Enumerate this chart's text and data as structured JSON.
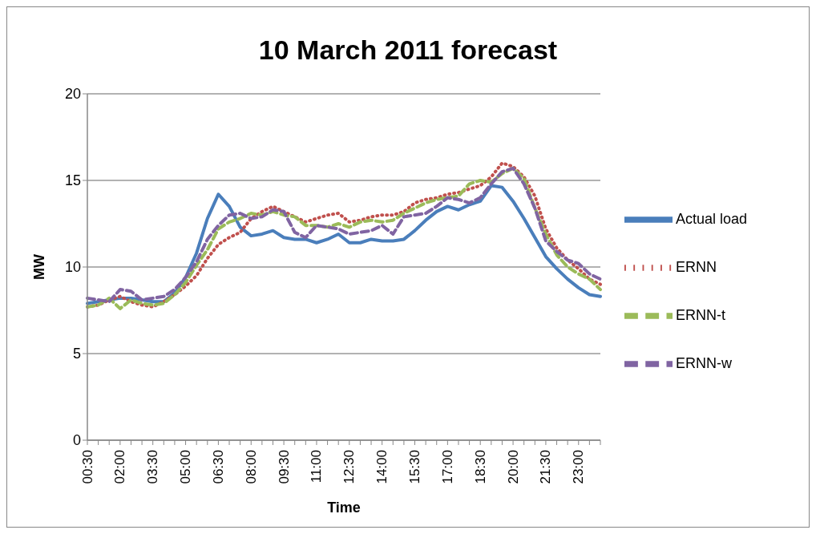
{
  "chart_data": {
    "type": "line",
    "title": "10 March 2011 forecast",
    "xlabel": "Time",
    "ylabel": "MW",
    "categories": [
      "00:30",
      null,
      null,
      "02:00",
      null,
      null,
      "03:30",
      null,
      null,
      "05:00",
      null,
      null,
      "06:30",
      null,
      null,
      "08:00",
      null,
      null,
      "09:30",
      null,
      null,
      "11:00",
      null,
      null,
      "12:30",
      null,
      null,
      "14:00",
      null,
      null,
      "15:30",
      null,
      null,
      "17:00",
      null,
      null,
      "18:30",
      null,
      null,
      "20:00",
      null,
      null,
      "21:30",
      null,
      null,
      "23:00",
      null,
      null
    ],
    "series": [
      {
        "name": "Actual load",
        "color": "#4a7ebb",
        "line_style": "solid",
        "values": [
          7.9,
          8.0,
          8.1,
          8.2,
          8.2,
          8.1,
          8.0,
          8.0,
          8.5,
          9.4,
          10.8,
          12.8,
          14.2,
          13.5,
          12.3,
          11.8,
          11.9,
          12.1,
          11.7,
          11.6,
          11.6,
          11.4,
          11.6,
          11.9,
          11.4,
          11.4,
          11.6,
          11.5,
          11.5,
          11.6,
          12.1,
          12.7,
          13.2,
          13.5,
          13.3,
          13.6,
          13.8,
          14.7,
          14.6,
          13.8,
          12.8,
          11.7,
          10.6,
          9.9,
          9.3,
          8.8,
          8.4,
          8.3
        ]
      },
      {
        "name": "ERNN",
        "color": "#c0504d",
        "line_style": "dotted",
        "values": [
          7.7,
          7.8,
          8.1,
          8.3,
          8.0,
          7.8,
          7.7,
          8.0,
          8.4,
          8.9,
          9.5,
          10.5,
          11.3,
          11.7,
          12.0,
          12.8,
          13.2,
          13.5,
          13.2,
          12.9,
          12.6,
          12.8,
          13.0,
          13.1,
          12.6,
          12.7,
          12.9,
          13.0,
          13.0,
          13.2,
          13.7,
          13.9,
          14.0,
          14.2,
          14.3,
          14.5,
          14.7,
          15.2,
          16.0,
          15.8,
          15.2,
          14.1,
          12.2,
          11.1,
          10.4,
          9.9,
          9.3,
          9.0
        ]
      },
      {
        "name": "ERNN-t",
        "color": "#9bbb59",
        "line_style": "dashed",
        "values": [
          7.7,
          7.8,
          8.2,
          7.6,
          8.1,
          7.9,
          7.8,
          7.9,
          8.4,
          9.1,
          10.1,
          11.0,
          12.2,
          12.6,
          12.8,
          13.1,
          13.0,
          13.2,
          13.0,
          12.9,
          12.4,
          12.4,
          12.3,
          12.5,
          12.3,
          12.6,
          12.7,
          12.6,
          12.7,
          13.1,
          13.4,
          13.7,
          13.9,
          14.0,
          14.1,
          14.8,
          15.0,
          14.9,
          15.4,
          15.7,
          15.1,
          13.4,
          11.9,
          10.7,
          10.0,
          9.6,
          9.3,
          8.7
        ]
      },
      {
        "name": "ERNN-w",
        "color": "#8064a2",
        "line_style": "dashed",
        "values": [
          8.2,
          8.1,
          8.0,
          8.7,
          8.6,
          8.1,
          8.2,
          8.3,
          8.7,
          9.4,
          10.3,
          11.6,
          12.4,
          13.0,
          13.1,
          12.8,
          12.9,
          13.3,
          13.2,
          12.0,
          11.7,
          12.4,
          12.3,
          12.2,
          11.9,
          12.0,
          12.1,
          12.4,
          11.9,
          12.9,
          13.0,
          13.1,
          13.5,
          14.0,
          13.9,
          13.7,
          14.0,
          14.8,
          15.5,
          15.7,
          14.8,
          13.4,
          11.5,
          10.9,
          10.4,
          10.2,
          9.6,
          9.3
        ]
      }
    ],
    "ylim": [
      0,
      20
    ],
    "yticks": [
      0,
      5,
      10,
      15,
      20
    ],
    "grid": "y",
    "legend": "right",
    "marker": "none"
  }
}
